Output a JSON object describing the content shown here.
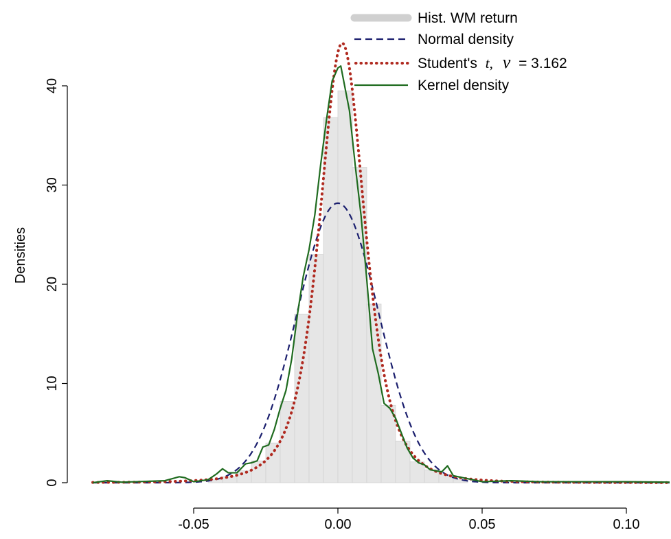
{
  "chart_data": {
    "type": "histogram-density",
    "xlabel": "",
    "ylabel": "Densities",
    "xlim": [
      -0.085,
      0.115
    ],
    "ylim": [
      0,
      43
    ],
    "x_ticks": [
      -0.05,
      0.0,
      0.05,
      0.1
    ],
    "x_tick_labels": [
      "-0.05",
      "0.00",
      "0.05",
      "0.10"
    ],
    "y_ticks": [
      0,
      10,
      20,
      30,
      40
    ],
    "y_tick_labels": [
      "0",
      "10",
      "20",
      "30",
      "40"
    ],
    "grid": false,
    "legend": {
      "placement": "top-right",
      "entries": {
        "hist": "Hist. WM return",
        "normal": "Normal density",
        "student_prefix": "Student's",
        "student_t": "t,",
        "student_nu": "ν",
        "student_value": "= 3.162",
        "kernel": "Kernel density"
      }
    },
    "histogram": {
      "name": "Hist. WM return",
      "bin_width": 0.005,
      "bins_start": [
        -0.045,
        -0.04,
        -0.035,
        -0.03,
        -0.025,
        -0.02,
        -0.015,
        -0.01,
        -0.005,
        0.0,
        0.005,
        0.01,
        0.015,
        0.02,
        0.025,
        0.03,
        0.035,
        0.04
      ],
      "values": [
        0.3,
        0.6,
        1.2,
        2.2,
        4.0,
        8.2,
        17.0,
        23.0,
        36.8,
        39.5,
        31.8,
        18.0,
        7.8,
        4.2,
        2.1,
        1.3,
        0.8,
        0.3
      ]
    },
    "series": [
      {
        "name": "Normal density",
        "style": "dashed",
        "color": "#1b1f6e",
        "mean": 0.0,
        "sd": 0.01416
      },
      {
        "name": "Student's t, ν = 3.162",
        "style": "dotted",
        "color": "#b02a20",
        "nu": 3.162,
        "loc": 0.0015,
        "scale": 0.00833
      },
      {
        "name": "Kernel density",
        "style": "solid",
        "color": "#1f6b1f",
        "x": [
          -0.085,
          -0.08,
          -0.075,
          -0.07,
          -0.06,
          -0.055,
          -0.053,
          -0.05,
          -0.045,
          -0.042,
          -0.04,
          -0.038,
          -0.035,
          -0.032,
          -0.03,
          -0.028,
          -0.026,
          -0.024,
          -0.022,
          -0.02,
          -0.018,
          -0.016,
          -0.014,
          -0.012,
          -0.01,
          -0.008,
          -0.006,
          -0.004,
          -0.002,
          0.0,
          0.001,
          0.002,
          0.004,
          0.006,
          0.008,
          0.01,
          0.012,
          0.014,
          0.016,
          0.018,
          0.02,
          0.022,
          0.024,
          0.026,
          0.028,
          0.03,
          0.032,
          0.034,
          0.036,
          0.038,
          0.04,
          0.045,
          0.05,
          0.06,
          0.07,
          0.08,
          0.09,
          0.1,
          0.115
        ],
        "y": [
          0.0,
          0.2,
          0.05,
          0.1,
          0.2,
          0.6,
          0.5,
          0.1,
          0.3,
          0.9,
          1.4,
          1.0,
          1.0,
          1.9,
          2.0,
          2.2,
          3.6,
          3.8,
          5.4,
          7.5,
          9.3,
          12.5,
          17.0,
          20.8,
          23.5,
          27.0,
          32.0,
          36.5,
          40.5,
          41.8,
          42.0,
          40.5,
          37.5,
          32.0,
          27.0,
          20.5,
          13.5,
          11.0,
          8.0,
          7.5,
          6.5,
          5.0,
          3.5,
          2.5,
          2.0,
          1.8,
          1.3,
          1.2,
          1.1,
          1.7,
          0.7,
          0.4,
          0.1,
          0.2,
          0.1,
          0.1,
          0.1,
          0.1,
          0.05
        ]
      }
    ]
  }
}
